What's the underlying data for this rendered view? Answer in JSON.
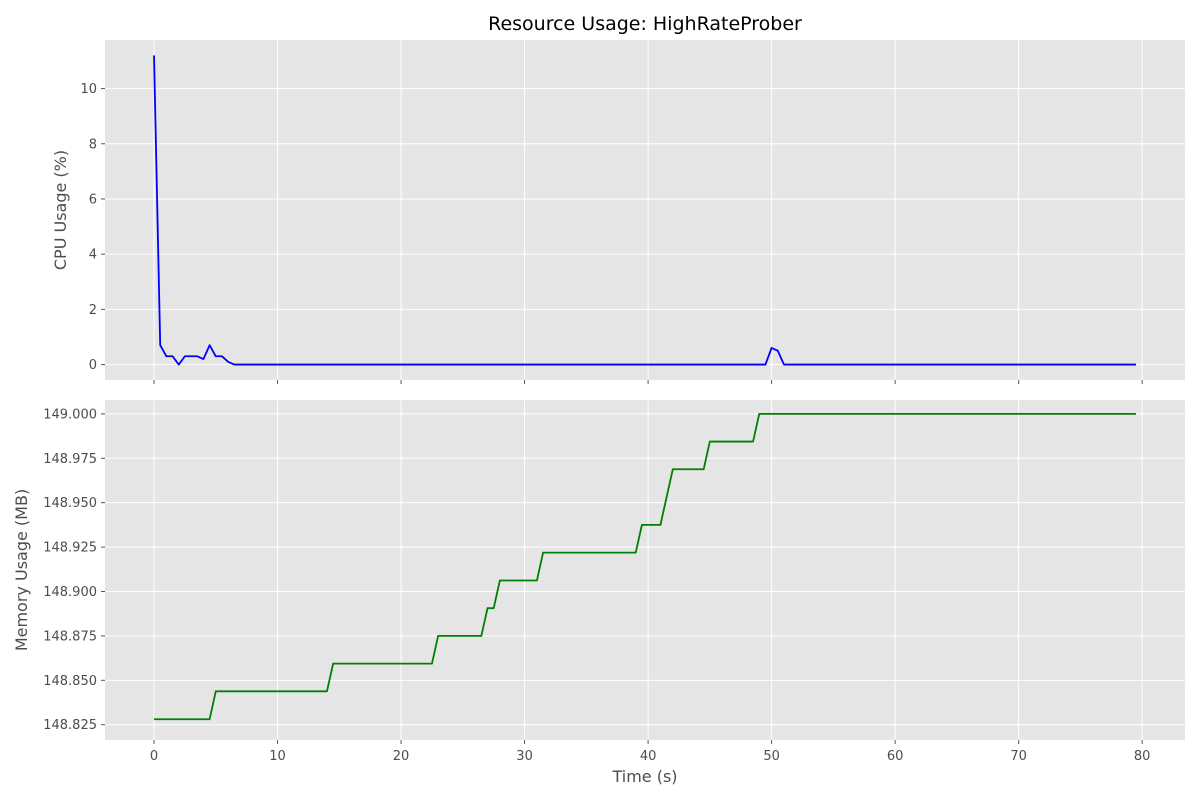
{
  "title": "Resource Usage: HighRateProber",
  "chart_data": [
    {
      "type": "line",
      "ylabel": "CPU Usage (%)",
      "xlabel": "",
      "xlim": [
        -3.97,
        83.47
      ],
      "ylim": [
        -0.56,
        11.76
      ],
      "yticks": [
        0,
        2,
        4,
        6,
        8,
        10
      ],
      "grid": true,
      "series": [
        {
          "color": "#0000ff",
          "x": [
            0,
            0.5,
            1,
            1.5,
            2,
            2.5,
            3,
            3.5,
            4,
            4.5,
            5,
            5.5,
            6,
            6.5,
            49.5,
            50,
            50.5,
            51,
            79.5
          ],
          "y": [
            11.2,
            0.7,
            0.3,
            0.3,
            0.0,
            0.3,
            0.3,
            0.3,
            0.2,
            0.7,
            0.3,
            0.3,
            0.1,
            0.0,
            0.0,
            0.6,
            0.5,
            0.0,
            0.0
          ]
        }
      ]
    },
    {
      "type": "line",
      "ylabel": "Memory Usage (MB)",
      "xlabel": "Time (s)",
      "xlim": [
        -3.97,
        83.47
      ],
      "ylim": [
        148.8164,
        149.0078
      ],
      "xticks": [
        0,
        10,
        20,
        30,
        40,
        50,
        60,
        70,
        80
      ],
      "yticks": [
        148.825,
        148.85,
        148.875,
        148.9,
        148.925,
        148.95,
        148.975,
        149.0
      ],
      "ytick_labels": [
        "148.825",
        "148.850",
        "148.875",
        "148.900",
        "148.925",
        "148.950",
        "148.975",
        "149.000"
      ],
      "grid": true,
      "series": [
        {
          "color": "#008000",
          "x": [
            0,
            4.5,
            5,
            14,
            14.5,
            22.5,
            23,
            26.5,
            27,
            27.5,
            28,
            31,
            31.5,
            39,
            39.5,
            41,
            42,
            44.5,
            45,
            48.5,
            49,
            79.5
          ],
          "y": [
            148.8281,
            148.8281,
            148.8438,
            148.8438,
            148.8594,
            148.8594,
            148.875,
            148.875,
            148.8906,
            148.8906,
            148.9062,
            148.9062,
            148.9219,
            148.9219,
            148.9375,
            148.9375,
            148.9688,
            148.9688,
            148.9844,
            148.9844,
            149.0,
            149.0
          ]
        }
      ]
    }
  ]
}
